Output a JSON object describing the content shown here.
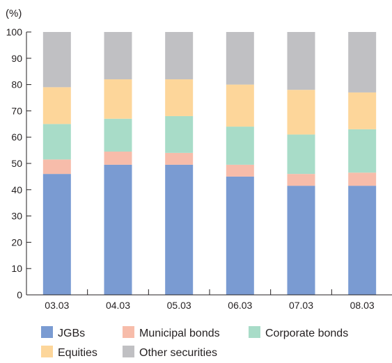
{
  "chart_data": {
    "type": "bar",
    "stacked": true,
    "unit_label": "(%)",
    "title": "",
    "xlabel": "",
    "ylabel": "",
    "ylim": [
      0,
      100
    ],
    "yticks": [
      0,
      10,
      20,
      30,
      40,
      50,
      60,
      70,
      80,
      90,
      100
    ],
    "grid": false,
    "legend_position": "bottom",
    "categories": [
      "03.03",
      "04.03",
      "05.03",
      "06.03",
      "07.03",
      "08.03"
    ],
    "series": [
      {
        "name": "JGBs",
        "color": "#7a9bd2",
        "values": [
          46,
          49.5,
          49.5,
          45,
          41.5,
          41.5
        ]
      },
      {
        "name": "Municipal bonds",
        "color": "#f7bcaa",
        "values": [
          5.5,
          5,
          4.5,
          4.5,
          4.5,
          5
        ]
      },
      {
        "name": "Corporate bonds",
        "color": "#a8dcc8",
        "values": [
          13.5,
          12.5,
          14,
          14.5,
          15,
          16.5
        ]
      },
      {
        "name": "Equities",
        "color": "#fdd69a",
        "values": [
          14,
          15,
          14,
          16,
          17,
          14
        ]
      },
      {
        "name": "Other securities",
        "color": "#c0c0c3",
        "values": [
          21,
          18,
          18,
          20,
          22,
          23
        ]
      }
    ]
  }
}
